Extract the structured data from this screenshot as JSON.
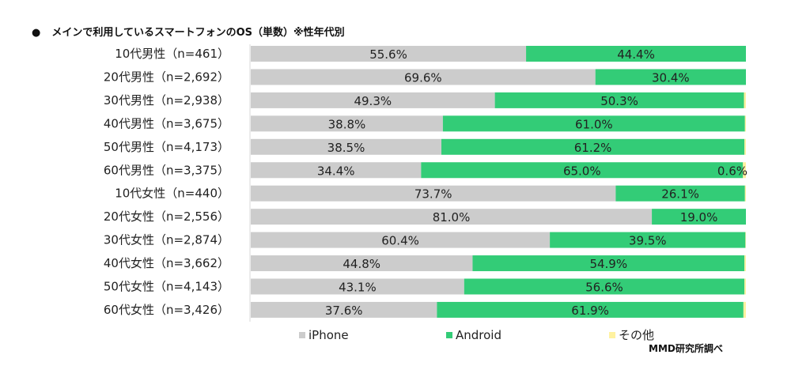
{
  "title_bullet": "●",
  "title": "メインで利用しているスマートフォンのOS（単数）※性年代別",
  "source": "MMD研究所調べ",
  "chart_data": {
    "type": "bar",
    "orientation": "horizontal",
    "stacked": "percent",
    "categories": [
      "10代男性（n=461）",
      "20代男性（n=2,692）",
      "30代男性（n=2,938）",
      "40代男性（n=3,675）",
      "50代男性（n=4,173）",
      "60代男性（n=3,375）",
      "10代女性（n=440）",
      "20代女性（n=2,556）",
      "30代女性（n=2,874）",
      "40代女性（n=3,662）",
      "50代女性（n=4,143）",
      "60代女性（n=3,426）"
    ],
    "series": [
      {
        "name": "iPhone",
        "color": "#cccccc",
        "values": [
          55.6,
          69.6,
          49.3,
          38.8,
          38.5,
          34.4,
          73.7,
          81.0,
          60.4,
          44.8,
          43.1,
          37.6
        ],
        "labels": [
          "55.6%",
          "69.6%",
          "49.3%",
          "38.8%",
          "38.5%",
          "34.4%",
          "73.7%",
          "81.0%",
          "60.4%",
          "44.8%",
          "43.1%",
          "37.6%"
        ]
      },
      {
        "name": "Android",
        "color": "#33cc77",
        "values": [
          44.4,
          30.4,
          50.3,
          61.0,
          61.2,
          65.0,
          26.1,
          19.0,
          39.5,
          54.9,
          56.6,
          61.9
        ],
        "labels": [
          "44.4%",
          "30.4%",
          "50.3%",
          "61.0%",
          "61.2%",
          "65.0%",
          "26.1%",
          "19.0%",
          "39.5%",
          "54.9%",
          "56.6%",
          "61.9%"
        ]
      },
      {
        "name": "その他",
        "color": "#fff2a0",
        "values": [
          0.0,
          0.0,
          0.4,
          0.2,
          0.3,
          0.6,
          0.2,
          0.0,
          0.1,
          0.3,
          0.3,
          0.5
        ],
        "labels": [
          "",
          "",
          "",
          "",
          "",
          "0.6%",
          "",
          "",
          "",
          "",
          "",
          ""
        ]
      }
    ],
    "xlim": [
      0,
      100
    ],
    "grid": false,
    "legend": "bottom"
  }
}
